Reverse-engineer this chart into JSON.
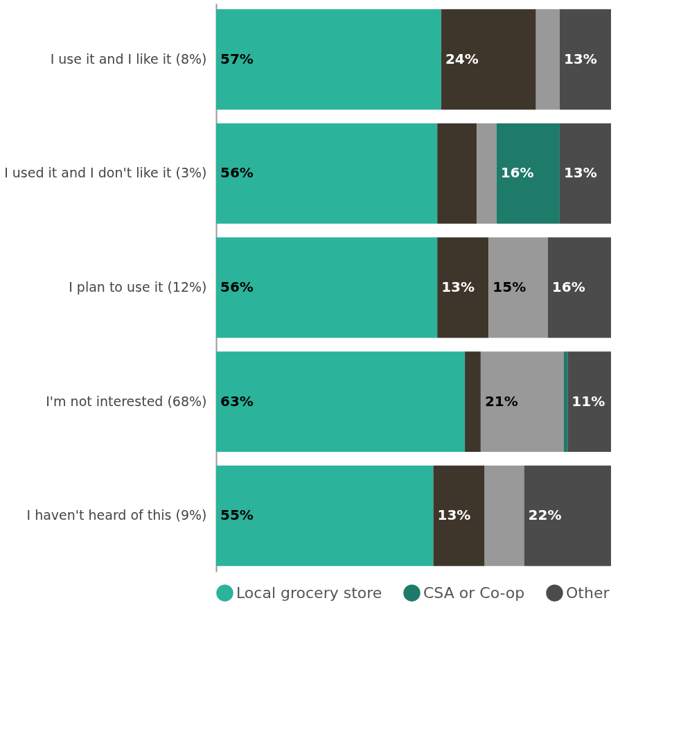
{
  "chart_data": {
    "type": "bar",
    "orientation": "horizontal",
    "stacked": true,
    "legend": "bottom",
    "categories": [
      "I use it and I like it (8%)",
      "I used it and I don't like it (3%)",
      "I plan to use it (12%)",
      "I'm not interested (68%)",
      "I haven't heard of this (9%)"
    ],
    "series": [
      {
        "name": "Local grocery store",
        "color": "#2bb39b",
        "values": [
          57,
          56,
          56,
          63,
          55
        ],
        "value_labels": [
          "57%",
          "56%",
          "56%",
          "63%",
          "55%"
        ]
      },
      {
        "color": "#3f362b",
        "values": [
          24,
          10,
          13,
          4,
          13
        ],
        "value_labels": [
          "24%",
          null,
          "13%",
          null,
          "13%"
        ]
      },
      {
        "color": "#999999",
        "values": [
          6,
          5,
          15,
          21,
          10
        ],
        "value_labels": [
          null,
          null,
          "15%",
          "21%",
          null
        ]
      },
      {
        "name": "CSA or Co-op",
        "color": "#1e7a69",
        "values": [
          0,
          16,
          0,
          1,
          0
        ],
        "value_labels": [
          null,
          "16%",
          null,
          null,
          null
        ]
      },
      {
        "name": "Other",
        "color": "#4b4b4b",
        "values": [
          13,
          13,
          16,
          11,
          22
        ],
        "value_labels": [
          "13%",
          "13%",
          "16%",
          "11%",
          "22%"
        ]
      }
    ]
  }
}
